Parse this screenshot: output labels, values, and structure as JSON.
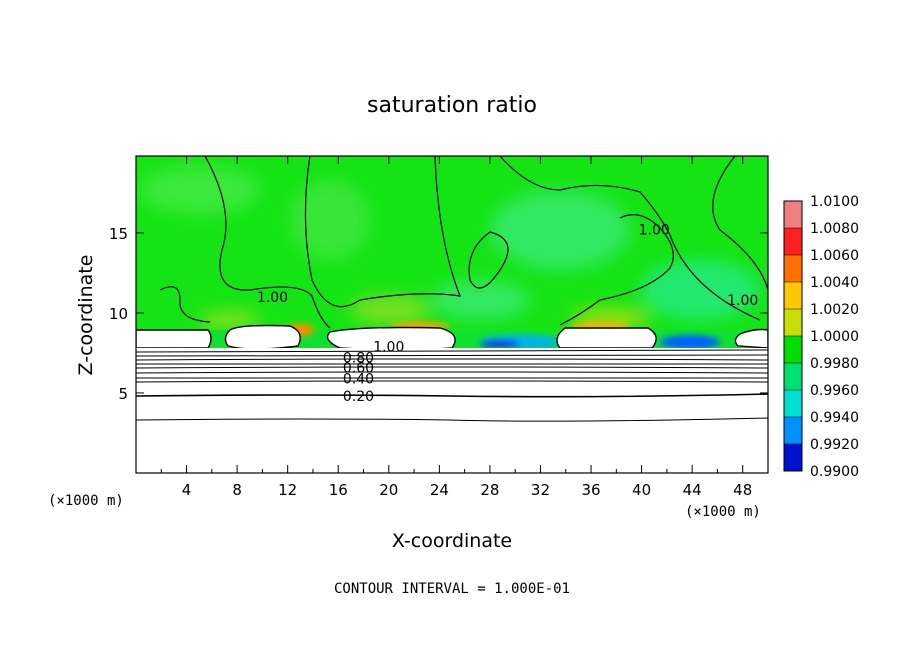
{
  "chart_data": {
    "type": "heatmap",
    "title": "saturation ratio",
    "xlabel": "X-coordinate",
    "ylabel": "Z-coordinate",
    "x_unit_left": "(×1000 m)",
    "x_unit_right": "(×1000 m)",
    "xlim": [
      0,
      50
    ],
    "ylim": [
      0,
      19.8
    ],
    "x_ticks": [
      4,
      8,
      12,
      16,
      20,
      24,
      28,
      32,
      36,
      40,
      44,
      48
    ],
    "y_ticks": [
      5,
      10,
      15
    ],
    "footer": "CONTOUR INTERVAL = 1.000E-01",
    "colorbar": {
      "labels": [
        "1.0100",
        "1.0080",
        "1.0060",
        "1.0040",
        "1.0020",
        "1.0000",
        "0.9980",
        "0.9960",
        "0.9940",
        "0.9920",
        "0.9900"
      ],
      "colors": [
        "#f08080",
        "#ff2020",
        "#ff7000",
        "#ffc800",
        "#c8e000",
        "#00dd00",
        "#00e070",
        "#00e0d0",
        "#0090ff",
        "#0010d0",
        "#100090",
        "#600090"
      ]
    },
    "contour_labels": [
      {
        "text": "1.00",
        "x": 10.8,
        "z": 11.0
      },
      {
        "text": "1.00",
        "x": 41.0,
        "z": 15.2
      },
      {
        "text": "1.00",
        "x": 48.0,
        "z": 10.8
      },
      {
        "text": "1.00",
        "x": 20.0,
        "z": 7.9
      },
      {
        "text": "0.80",
        "x": 17.6,
        "z": 7.2
      },
      {
        "text": "0.60",
        "x": 17.6,
        "z": 6.6
      },
      {
        "text": "0.40",
        "x": 17.6,
        "z": 5.9
      },
      {
        "text": "0.20",
        "x": 17.6,
        "z": 4.8
      }
    ],
    "contours_low": [
      {
        "level": 0.2,
        "z": 5.0
      },
      {
        "level": 0.4,
        "z": 6.0
      },
      {
        "level": 0.6,
        "z": 6.6
      },
      {
        "level": 0.8,
        "z": 7.2
      }
    ],
    "saturation_layer_top_z": 9.0,
    "cloud_base_z": 7.8
  }
}
